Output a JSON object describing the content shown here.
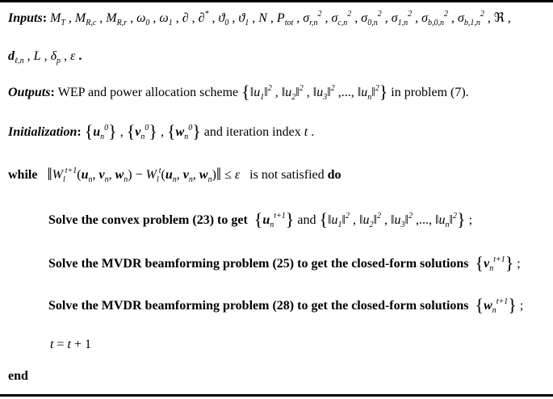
{
  "algorithm": {
    "lines": [
      {
        "name": "inputs-line",
        "items": [
          {
            "t": "kwi",
            "v": "Inputs"
          },
          {
            "t": "kw",
            "v": ": "
          },
          {
            "t": "m",
            "b": "M",
            "sub": "T"
          },
          {
            "t": "txt",
            "v": " , "
          },
          {
            "t": "m",
            "b": "M",
            "sub": "R,c"
          },
          {
            "t": "txt",
            "v": " , "
          },
          {
            "t": "m",
            "b": "M",
            "sub": "R,r"
          },
          {
            "t": "txt",
            "v": " , "
          },
          {
            "t": "m",
            "b": "ω",
            "sub": "0"
          },
          {
            "t": "txt",
            "v": " , "
          },
          {
            "t": "m",
            "b": "ω",
            "sub": "1"
          },
          {
            "t": "txt",
            "v": " , "
          },
          {
            "t": "m",
            "b": "∂"
          },
          {
            "t": "txt",
            "v": " , "
          },
          {
            "t": "m",
            "b": "∂",
            "sup": "*"
          },
          {
            "t": "txt",
            "v": " , "
          },
          {
            "t": "m",
            "b": "ϑ",
            "sub": "0"
          },
          {
            "t": "txt",
            "v": " , "
          },
          {
            "t": "m",
            "b": "ϑ",
            "sub": "1"
          },
          {
            "t": "txt",
            "v": " , "
          },
          {
            "t": "m",
            "b": "N"
          },
          {
            "t": "txt",
            "v": " , "
          },
          {
            "t": "m",
            "b": "P",
            "sub": "tot"
          },
          {
            "t": "txt",
            "v": " , "
          },
          {
            "t": "m",
            "b": "σ",
            "sub": "r,n",
            "sup": "2"
          },
          {
            "t": "txt",
            "v": " , "
          },
          {
            "t": "m",
            "b": "σ",
            "sub": "c,n",
            "sup": "2"
          },
          {
            "t": "txt",
            "v": " , "
          },
          {
            "t": "m",
            "b": "σ",
            "sub": "0,n",
            "sup": "2"
          },
          {
            "t": "txt",
            "v": " , "
          },
          {
            "t": "m",
            "b": "σ",
            "sub": "1,n",
            "sup": "2"
          },
          {
            "t": "txt",
            "v": " , "
          },
          {
            "t": "m",
            "b": "σ",
            "sub": "b,0,n",
            "sup": "2"
          },
          {
            "t": "txt",
            "v": " , "
          },
          {
            "t": "m",
            "b": "σ",
            "sub": "b,1,n",
            "sup": "2"
          },
          {
            "t": "txt",
            "v": " , "
          },
          {
            "t": "txt",
            "v": "ℜ"
          },
          {
            "t": "txt",
            "v": " ,"
          }
        ]
      },
      {
        "name": "inputs-line-2",
        "items": [
          {
            "t": "mb",
            "b": "d",
            "sub": "ℓ,n"
          },
          {
            "t": "txt",
            "v": " , "
          },
          {
            "t": "m",
            "b": "L"
          },
          {
            "t": "txt",
            "v": " , "
          },
          {
            "t": "m",
            "b": "δ",
            "sub": "p"
          },
          {
            "t": "txt",
            "v": " , "
          },
          {
            "t": "m",
            "b": "ε"
          },
          {
            "t": "kw",
            "v": " ."
          }
        ]
      },
      {
        "name": "outputs-line",
        "items": [
          {
            "t": "kwi",
            "v": "Outputs"
          },
          {
            "t": "kw",
            "v": ": "
          },
          {
            "t": "txt",
            "v": "WEP and power allocation scheme "
          },
          {
            "t": "big",
            "v": "{"
          },
          {
            "t": "txt",
            "v": "‖"
          },
          {
            "t": "m",
            "b": "u",
            "sub": "1"
          },
          {
            "t": "txt",
            "v": "‖"
          },
          {
            "t": "m",
            "b": "",
            "sup": "2"
          },
          {
            "t": "txt",
            "v": " , ‖"
          },
          {
            "t": "m",
            "b": "u",
            "sub": "2"
          },
          {
            "t": "txt",
            "v": "‖"
          },
          {
            "t": "m",
            "b": "",
            "sup": "2"
          },
          {
            "t": "txt",
            "v": " , ‖"
          },
          {
            "t": "m",
            "b": "u",
            "sub": "3"
          },
          {
            "t": "txt",
            "v": "‖"
          },
          {
            "t": "m",
            "b": "",
            "sup": "2"
          },
          {
            "t": "txt",
            "v": " ,..., ‖"
          },
          {
            "t": "m",
            "b": "u",
            "sub": "n"
          },
          {
            "t": "txt",
            "v": "‖"
          },
          {
            "t": "m",
            "b": "",
            "sup": "2"
          },
          {
            "t": "big",
            "v": "}"
          },
          {
            "t": "txt",
            "v": " in problem (7)."
          }
        ]
      },
      {
        "name": "initialization-line",
        "items": [
          {
            "t": "kwi",
            "v": "Initialization"
          },
          {
            "t": "kw",
            "v": ": "
          },
          {
            "t": "big",
            "v": "{"
          },
          {
            "t": "mb",
            "b": "u",
            "sub": "n",
            "sup": "0"
          },
          {
            "t": "big",
            "v": "}"
          },
          {
            "t": "txt",
            "v": " , "
          },
          {
            "t": "big",
            "v": "{"
          },
          {
            "t": "mb",
            "b": "v",
            "sub": "n",
            "sup": "0"
          },
          {
            "t": "big",
            "v": "}"
          },
          {
            "t": "txt",
            "v": " , "
          },
          {
            "t": "big",
            "v": "{"
          },
          {
            "t": "mb",
            "b": "w",
            "sub": "n",
            "sup": "0"
          },
          {
            "t": "big",
            "v": "}"
          },
          {
            "t": "txt",
            "v": " and iteration index "
          },
          {
            "t": "m",
            "b": "t"
          },
          {
            "t": "txt",
            "v": " ."
          }
        ]
      },
      {
        "name": "while-line",
        "items": [
          {
            "t": "kw",
            "v": "while   "
          },
          {
            "t": "big",
            "v": "‖"
          },
          {
            "t": "m",
            "b": "W",
            "sub": "l",
            "sup": "t+1"
          },
          {
            "t": "txt",
            "v": "("
          },
          {
            "t": "mb",
            "b": "u",
            "sub": "n"
          },
          {
            "t": "txt",
            "v": ", "
          },
          {
            "t": "mb",
            "b": "v",
            "sub": "n"
          },
          {
            "t": "txt",
            "v": ", "
          },
          {
            "t": "mb",
            "b": "w",
            "sub": "n"
          },
          {
            "t": "txt",
            "v": ") − "
          },
          {
            "t": "m",
            "b": "W",
            "sub": "l",
            "sup": "t"
          },
          {
            "t": "txt",
            "v": "("
          },
          {
            "t": "mb",
            "b": "u",
            "sub": "n"
          },
          {
            "t": "txt",
            "v": ", "
          },
          {
            "t": "mb",
            "b": "v",
            "sub": "n"
          },
          {
            "t": "txt",
            "v": ", "
          },
          {
            "t": "mb",
            "b": "w",
            "sub": "n"
          },
          {
            "t": "txt",
            "v": ")"
          },
          {
            "t": "big",
            "v": "‖"
          },
          {
            "t": "txt",
            "v": " ≤ "
          },
          {
            "t": "m",
            "b": "ε"
          },
          {
            "t": "txt",
            "v": "   is not satisfied "
          },
          {
            "t": "kw",
            "v": "do"
          }
        ]
      },
      {
        "name": "step-convex",
        "items": [
          {
            "t": "kw",
            "v": "Solve the convex problem (23) to get  "
          },
          {
            "t": "big",
            "v": "{"
          },
          {
            "t": "mb",
            "b": "u",
            "sub": "n",
            "sup": "t+1"
          },
          {
            "t": "big",
            "v": "}"
          },
          {
            "t": "txt",
            "v": " and "
          },
          {
            "t": "big",
            "v": "{"
          },
          {
            "t": "txt",
            "v": "‖"
          },
          {
            "t": "m",
            "b": "u",
            "sub": "1"
          },
          {
            "t": "txt",
            "v": "‖"
          },
          {
            "t": "m",
            "b": "",
            "sup": "2"
          },
          {
            "t": "txt",
            "v": " , ‖"
          },
          {
            "t": "m",
            "b": "u",
            "sub": "2"
          },
          {
            "t": "txt",
            "v": "‖"
          },
          {
            "t": "m",
            "b": "",
            "sup": "2"
          },
          {
            "t": "txt",
            "v": " , ‖"
          },
          {
            "t": "m",
            "b": "u",
            "sub": "3"
          },
          {
            "t": "txt",
            "v": "‖"
          },
          {
            "t": "m",
            "b": "",
            "sup": "2"
          },
          {
            "t": "txt",
            "v": " ,..., ‖"
          },
          {
            "t": "m",
            "b": "u",
            "sub": "n"
          },
          {
            "t": "txt",
            "v": "‖"
          },
          {
            "t": "m",
            "b": "",
            "sup": "2"
          },
          {
            "t": "big",
            "v": "}"
          },
          {
            "t": "txt",
            "v": " ;"
          }
        ]
      },
      {
        "name": "step-mvdr-25",
        "items": [
          {
            "t": "kw",
            "v": "Solve the MVDR beamforming problem (25) to get the closed-form solutions  "
          },
          {
            "t": "big",
            "v": "{"
          },
          {
            "t": "mb",
            "b": "v",
            "sub": "n",
            "sup": "t+1"
          },
          {
            "t": "big",
            "v": "}"
          },
          {
            "t": "txt",
            "v": " ;"
          }
        ]
      },
      {
        "name": "step-mvdr-28",
        "items": [
          {
            "t": "kw",
            "v": "Solve the MVDR beamforming problem (28) to get the closed-form solutions  "
          },
          {
            "t": "big",
            "v": "{"
          },
          {
            "t": "mb",
            "b": "w",
            "sub": "n",
            "sup": "t+1"
          },
          {
            "t": "big",
            "v": "}"
          },
          {
            "t": "txt",
            "v": " ;"
          }
        ]
      },
      {
        "name": "step-increment",
        "items": [
          {
            "t": "m",
            "b": "t"
          },
          {
            "t": "txt",
            "v": " = "
          },
          {
            "t": "m",
            "b": "t"
          },
          {
            "t": "txt",
            "v": " + 1"
          }
        ]
      },
      {
        "name": "end-line",
        "items": [
          {
            "t": "kw",
            "v": "end"
          }
        ]
      }
    ]
  }
}
